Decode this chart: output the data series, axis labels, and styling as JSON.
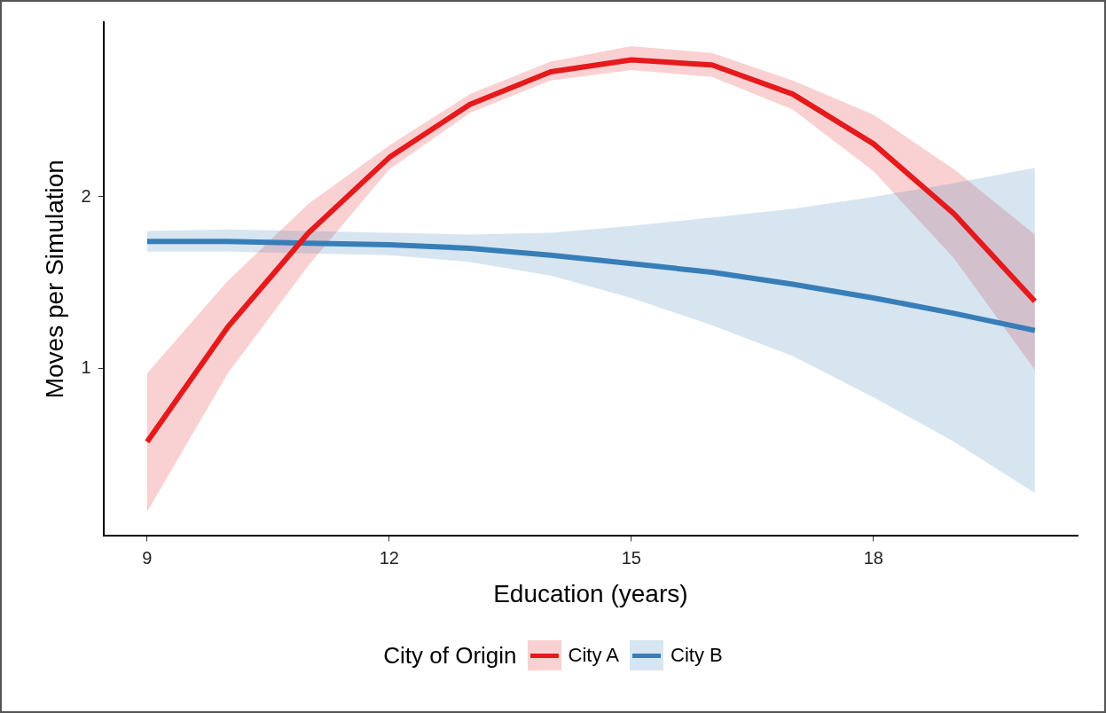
{
  "chart_data": {
    "type": "line",
    "xlabel": "Education (years)",
    "ylabel": "Moves per Simulation",
    "legend_title": "City of Origin",
    "legend": "bottom",
    "grid": false,
    "marker": "none",
    "line_style": "solid",
    "xlim": [
      8.46,
      20.53
    ],
    "xticks": [
      9,
      12,
      15,
      18
    ],
    "ylim": [
      0.02,
      3.02
    ],
    "yticks": [
      1,
      2
    ],
    "x": [
      9,
      10,
      11,
      12,
      13,
      14,
      15,
      16,
      17,
      18,
      19,
      20
    ],
    "series": [
      {
        "name": "City A",
        "color": "#e41a1c",
        "values": [
          0.57,
          1.24,
          1.79,
          2.23,
          2.54,
          2.73,
          2.8,
          2.77,
          2.6,
          2.31,
          1.9,
          1.39
        ],
        "lower": [
          0.16,
          0.97,
          1.6,
          2.16,
          2.49,
          2.68,
          2.74,
          2.7,
          2.51,
          2.15,
          1.64,
          0.99
        ],
        "upper": [
          0.97,
          1.51,
          1.96,
          2.3,
          2.6,
          2.79,
          2.88,
          2.84,
          2.68,
          2.48,
          2.16,
          1.78
        ]
      },
      {
        "name": "City B",
        "color": "#377eb8",
        "values": [
          1.74,
          1.74,
          1.73,
          1.72,
          1.7,
          1.66,
          1.61,
          1.56,
          1.49,
          1.41,
          1.32,
          1.22
        ],
        "lower": [
          1.68,
          1.68,
          1.67,
          1.66,
          1.62,
          1.54,
          1.41,
          1.25,
          1.07,
          0.83,
          0.57,
          0.27
        ],
        "upper": [
          1.8,
          1.81,
          1.8,
          1.79,
          1.78,
          1.79,
          1.83,
          1.88,
          1.93,
          2.0,
          2.08,
          2.17
        ]
      }
    ]
  }
}
